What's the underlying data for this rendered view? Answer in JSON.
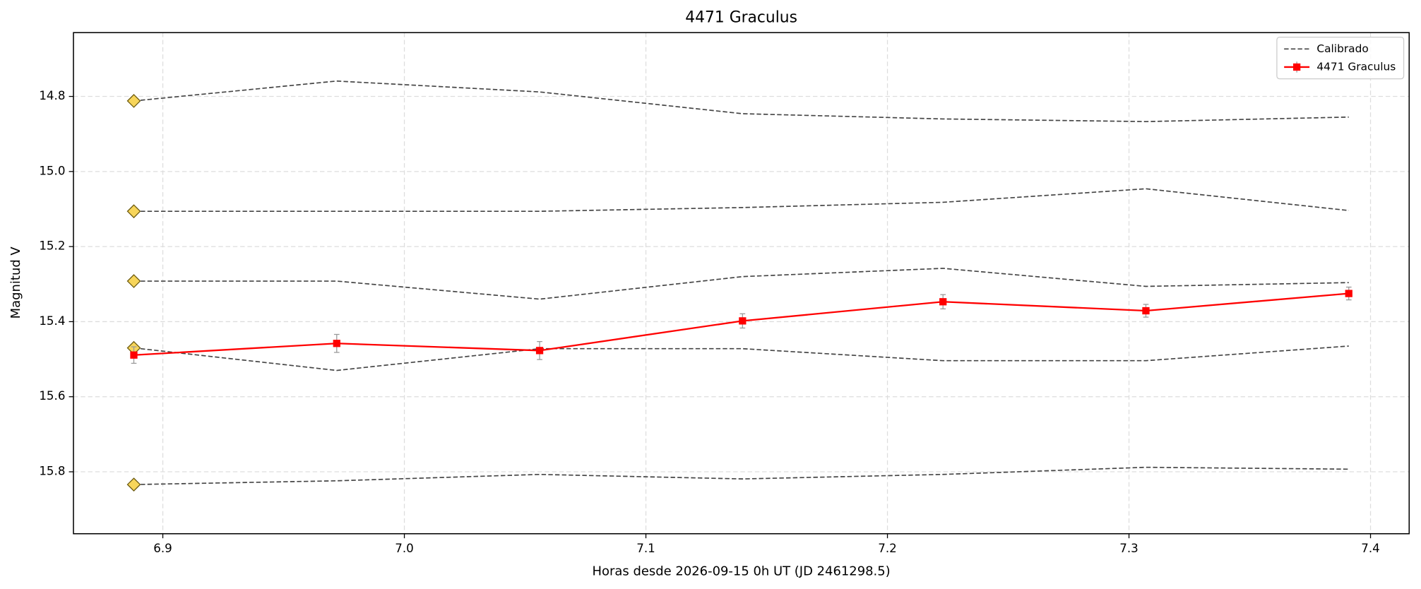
{
  "chart_data": {
    "type": "line",
    "title": "4471 Graculus",
    "x_label": "Horas desde 2026-09-15 0h UT (JD 2461298.5)",
    "y_label": "Magnitud V",
    "x": [
      6.888,
      6.972,
      7.056,
      7.14,
      7.223,
      7.307,
      7.391
    ],
    "reference": {
      "name": "Calibrado",
      "color": "#444444",
      "marker_color": "#f7d55a",
      "lines": [
        [
          14.812,
          14.759,
          14.788,
          14.846,
          14.86,
          14.867,
          14.855
        ],
        [
          15.106,
          15.106,
          15.106,
          15.096,
          15.082,
          15.046,
          15.104
        ],
        [
          15.292,
          15.292,
          15.34,
          15.28,
          15.258,
          15.306,
          15.296
        ],
        [
          15.47,
          15.53,
          15.472,
          15.472,
          15.504,
          15.504,
          15.465
        ],
        [
          15.834,
          15.824,
          15.807,
          15.819,
          15.807,
          15.788,
          15.793
        ]
      ]
    },
    "series": [
      {
        "name": "4471 Graculus",
        "color": "#ff0000",
        "values": [
          15.489,
          15.458,
          15.477,
          15.398,
          15.347,
          15.371,
          15.325
        ],
        "errors": [
          0.022,
          0.024,
          0.024,
          0.019,
          0.019,
          0.017,
          0.017
        ]
      }
    ],
    "xlim": [
      6.863,
      7.416
    ],
    "xticks": [
      6.9,
      {
        "value": 7,
        "label": "7.0"
      },
      7.1,
      7.2,
      7.3,
      7.4
    ],
    "ylim": [
      15.965,
      14.63
    ],
    "yticks": [
      14.8,
      {
        "value": 15,
        "label": "15.0"
      },
      15.2,
      15.4,
      15.6,
      15.8
    ],
    "grid": true,
    "legend": "upper right"
  }
}
